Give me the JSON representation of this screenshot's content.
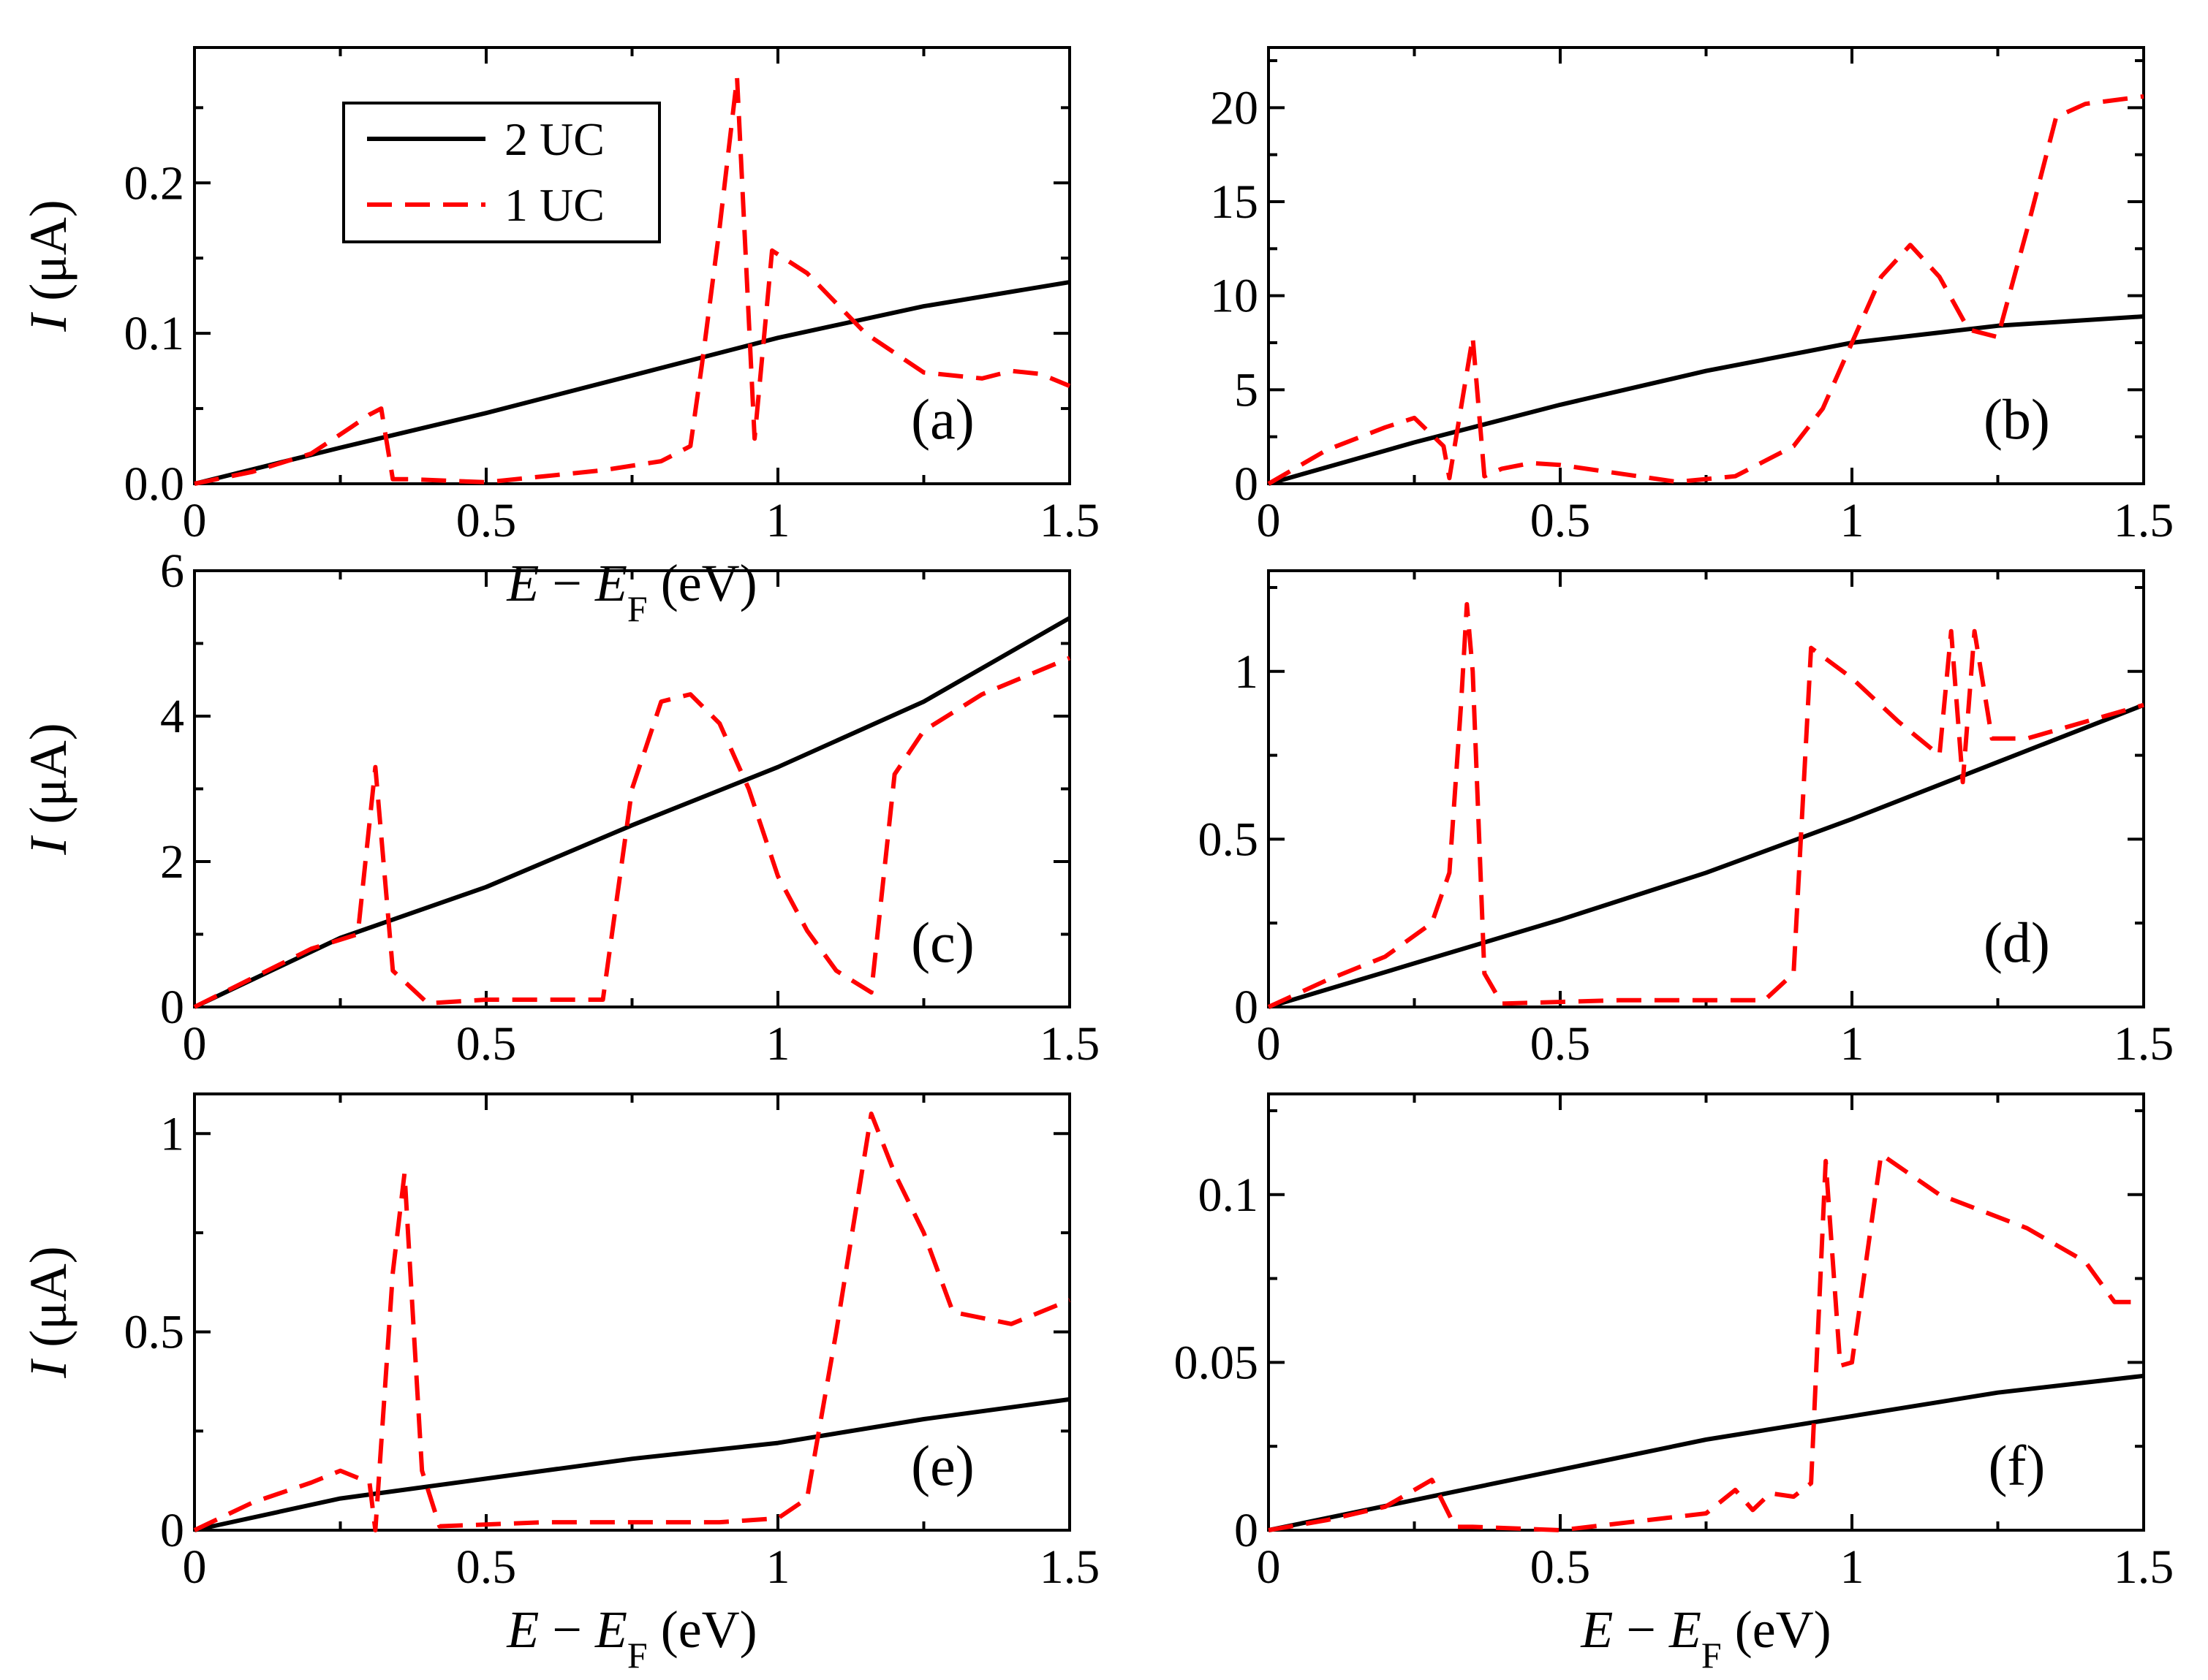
{
  "chart_data": [
    {
      "type": "line",
      "panel_label": "(a)",
      "xlabel": "E − E_F (eV)",
      "ylabel": "I (μA)",
      "xlim": [
        0,
        1.5
      ],
      "ylim": [
        0,
        0.29
      ],
      "xticks": [
        0,
        0.5,
        1,
        1.5
      ],
      "xtick_labels": [
        "0",
        "0.5",
        "1",
        "1.5"
      ],
      "yticks": [
        0,
        0.1,
        0.2
      ],
      "ytick_labels": [
        "0.0",
        "0.1",
        "0.2"
      ],
      "legend": {
        "position": "top-left",
        "entries": [
          "2 UC",
          "1 UC"
        ]
      },
      "series": [
        {
          "name": "2 UC",
          "style": "solid",
          "color": "#000000",
          "x": [
            0,
            0.25,
            0.5,
            0.75,
            1.0,
            1.25,
            1.5
          ],
          "y": [
            0,
            0.024,
            0.047,
            0.072,
            0.097,
            0.118,
            0.134
          ]
        },
        {
          "name": "1 UC",
          "style": "dashed",
          "color": "#ff0000",
          "x": [
            0,
            0.1,
            0.2,
            0.27,
            0.3,
            0.32,
            0.34,
            0.37,
            0.5,
            0.7,
            0.8,
            0.85,
            0.87,
            0.9,
            0.93,
            0.96,
            0.99,
            1.05,
            1.15,
            1.25,
            1.35,
            1.4,
            1.45,
            1.5
          ],
          "y": [
            0,
            0.008,
            0.02,
            0.038,
            0.046,
            0.05,
            0.003,
            0.003,
            0.001,
            0.009,
            0.015,
            0.025,
            0.08,
            0.17,
            0.27,
            0.03,
            0.155,
            0.14,
            0.1,
            0.074,
            0.07,
            0.075,
            0.073,
            0.065
          ]
        }
      ]
    },
    {
      "type": "line",
      "panel_label": "(b)",
      "xlabel": "",
      "ylabel": "",
      "xlim": [
        0,
        1.5
      ],
      "ylim": [
        0,
        23.2
      ],
      "xticks": [
        0,
        0.5,
        1,
        1.5
      ],
      "xtick_labels": [
        "0",
        "0.5",
        "1",
        "1.5"
      ],
      "yticks": [
        0,
        5,
        10,
        15,
        20
      ],
      "ytick_labels": [
        "0",
        "5",
        "10",
        "15",
        "20"
      ],
      "series": [
        {
          "name": "2 UC",
          "style": "solid",
          "color": "#000000",
          "x": [
            0,
            0.25,
            0.5,
            0.75,
            1.0,
            1.25,
            1.5
          ],
          "y": [
            0,
            2.2,
            4.2,
            6.0,
            7.5,
            8.4,
            8.9
          ]
        },
        {
          "name": "1 UC",
          "style": "dashed",
          "color": "#ff0000",
          "x": [
            0,
            0.1,
            0.2,
            0.25,
            0.3,
            0.31,
            0.35,
            0.37,
            0.4,
            0.45,
            0.5,
            0.7,
            0.8,
            0.9,
            0.95,
            1.0,
            1.05,
            1.1,
            1.15,
            1.2,
            1.25,
            1.3,
            1.35,
            1.4,
            1.5
          ],
          "y": [
            0,
            1.8,
            3.0,
            3.5,
            2.0,
            0.3,
            7.8,
            0.4,
            0.8,
            1.1,
            1.0,
            0.1,
            0.4,
            2.0,
            4.0,
            7.5,
            11.0,
            12.7,
            11.0,
            8.2,
            7.8,
            13.5,
            19.5,
            20.2,
            20.6
          ]
        }
      ]
    },
    {
      "type": "line",
      "panel_label": "(c)",
      "xlabel": "",
      "ylabel": "I (μA)",
      "xlim": [
        0,
        1.5
      ],
      "ylim": [
        0,
        6
      ],
      "xticks": [
        0,
        0.5,
        1,
        1.5
      ],
      "xtick_labels": [
        "0",
        "0.5",
        "1",
        "1.5"
      ],
      "yticks": [
        0,
        2,
        4,
        6
      ],
      "ytick_labels": [
        "0",
        "2",
        "4",
        "6"
      ],
      "series": [
        {
          "name": "2 UC",
          "style": "solid",
          "color": "#000000",
          "x": [
            0,
            0.25,
            0.5,
            0.75,
            1.0,
            1.25,
            1.5
          ],
          "y": [
            0,
            0.95,
            1.65,
            2.5,
            3.3,
            4.2,
            5.35
          ]
        },
        {
          "name": "1 UC",
          "style": "dashed",
          "color": "#ff0000",
          "x": [
            0,
            0.1,
            0.2,
            0.28,
            0.31,
            0.34,
            0.4,
            0.5,
            0.6,
            0.7,
            0.75,
            0.8,
            0.85,
            0.9,
            0.95,
            1.0,
            1.05,
            1.1,
            1.16,
            1.2,
            1.25,
            1.35,
            1.5
          ],
          "y": [
            0,
            0.4,
            0.8,
            1.0,
            3.3,
            0.5,
            0.05,
            0.1,
            0.1,
            0.1,
            3.0,
            4.2,
            4.3,
            3.9,
            3.0,
            1.8,
            1.05,
            0.5,
            0.2,
            3.2,
            3.8,
            4.3,
            4.8
          ]
        }
      ]
    },
    {
      "type": "line",
      "panel_label": "(d)",
      "xlabel": "",
      "ylabel": "",
      "xlim": [
        0,
        1.5
      ],
      "ylim": [
        0,
        1.3
      ],
      "xticks": [
        0,
        0.5,
        1,
        1.5
      ],
      "xtick_labels": [
        "0",
        "0.5",
        "1",
        "1.5"
      ],
      "yticks": [
        0,
        0.5,
        1
      ],
      "ytick_labels": [
        "0",
        "0.5",
        "1"
      ],
      "series": [
        {
          "name": "2 UC",
          "style": "solid",
          "color": "#000000",
          "x": [
            0,
            0.25,
            0.5,
            0.75,
            1.0,
            1.25,
            1.5
          ],
          "y": [
            0,
            0.13,
            0.26,
            0.4,
            0.56,
            0.73,
            0.9
          ]
        },
        {
          "name": "1 UC",
          "style": "dashed",
          "color": "#ff0000",
          "x": [
            0,
            0.1,
            0.2,
            0.28,
            0.31,
            0.33,
            0.34,
            0.35,
            0.37,
            0.4,
            0.6,
            0.85,
            0.9,
            0.93,
            1.0,
            1.08,
            1.15,
            1.17,
            1.19,
            1.21,
            1.24,
            1.3,
            1.5
          ],
          "y": [
            0,
            0.08,
            0.15,
            0.25,
            0.4,
            0.9,
            1.2,
            1.0,
            0.1,
            0.01,
            0.02,
            0.02,
            0.1,
            1.07,
            0.98,
            0.85,
            0.75,
            1.12,
            0.67,
            1.12,
            0.8,
            0.8,
            0.9
          ]
        }
      ]
    },
    {
      "type": "line",
      "panel_label": "(e)",
      "xlabel": "E − E_F (eV)",
      "ylabel": "I (μA)",
      "xlim": [
        0,
        1.5
      ],
      "ylim": [
        0,
        1.1
      ],
      "xticks": [
        0,
        0.5,
        1,
        1.5
      ],
      "xtick_labels": [
        "0",
        "0.5",
        "1",
        "1.5"
      ],
      "yticks": [
        0,
        0.5,
        1
      ],
      "ytick_labels": [
        "0",
        "0.5",
        "1"
      ],
      "series": [
        {
          "name": "2 UC",
          "style": "solid",
          "color": "#000000",
          "x": [
            0,
            0.25,
            0.5,
            0.75,
            1.0,
            1.25,
            1.5
          ],
          "y": [
            0,
            0.08,
            0.13,
            0.18,
            0.22,
            0.28,
            0.33
          ]
        },
        {
          "name": "1 UC",
          "style": "dashed",
          "color": "#ff0000",
          "x": [
            0,
            0.1,
            0.2,
            0.25,
            0.3,
            0.31,
            0.34,
            0.36,
            0.39,
            0.42,
            0.6,
            0.9,
            1.0,
            1.05,
            1.1,
            1.16,
            1.2,
            1.25,
            1.3,
            1.4,
            1.5
          ],
          "y": [
            0,
            0.07,
            0.12,
            0.15,
            0.12,
            0.0,
            0.65,
            0.9,
            0.15,
            0.01,
            0.02,
            0.02,
            0.03,
            0.08,
            0.5,
            1.05,
            0.9,
            0.75,
            0.55,
            0.52,
            0.58
          ]
        }
      ]
    },
    {
      "type": "line",
      "panel_label": "(f)",
      "xlabel": "E − E_F (eV)",
      "ylabel": "",
      "xlim": [
        0,
        1.5
      ],
      "ylim": [
        0,
        0.13
      ],
      "xticks": [
        0,
        0.5,
        1,
        1.5
      ],
      "xtick_labels": [
        "0",
        "0.5",
        "1",
        "1.5"
      ],
      "yticks": [
        0,
        0.05,
        0.1
      ],
      "ytick_labels": [
        "0",
        "0.05",
        "0.1"
      ],
      "series": [
        {
          "name": "2 UC",
          "style": "solid",
          "color": "#000000",
          "x": [
            0,
            0.25,
            0.5,
            0.75,
            1.0,
            1.25,
            1.5
          ],
          "y": [
            0,
            0.009,
            0.018,
            0.027,
            0.034,
            0.041,
            0.046
          ]
        },
        {
          "name": "1 UC",
          "style": "dashed",
          "color": "#ff0000",
          "x": [
            0,
            0.1,
            0.2,
            0.28,
            0.32,
            0.35,
            0.5,
            0.75,
            0.8,
            0.83,
            0.86,
            0.9,
            0.93,
            0.955,
            0.98,
            1.0,
            1.05,
            1.15,
            1.3,
            1.4,
            1.45,
            1.5
          ],
          "y": [
            0,
            0.003,
            0.007,
            0.015,
            0.001,
            0.001,
            0.0,
            0.005,
            0.012,
            0.006,
            0.011,
            0.01,
            0.014,
            0.11,
            0.049,
            0.05,
            0.112,
            0.1,
            0.09,
            0.08,
            0.068,
            0.068
          ]
        }
      ]
    }
  ]
}
